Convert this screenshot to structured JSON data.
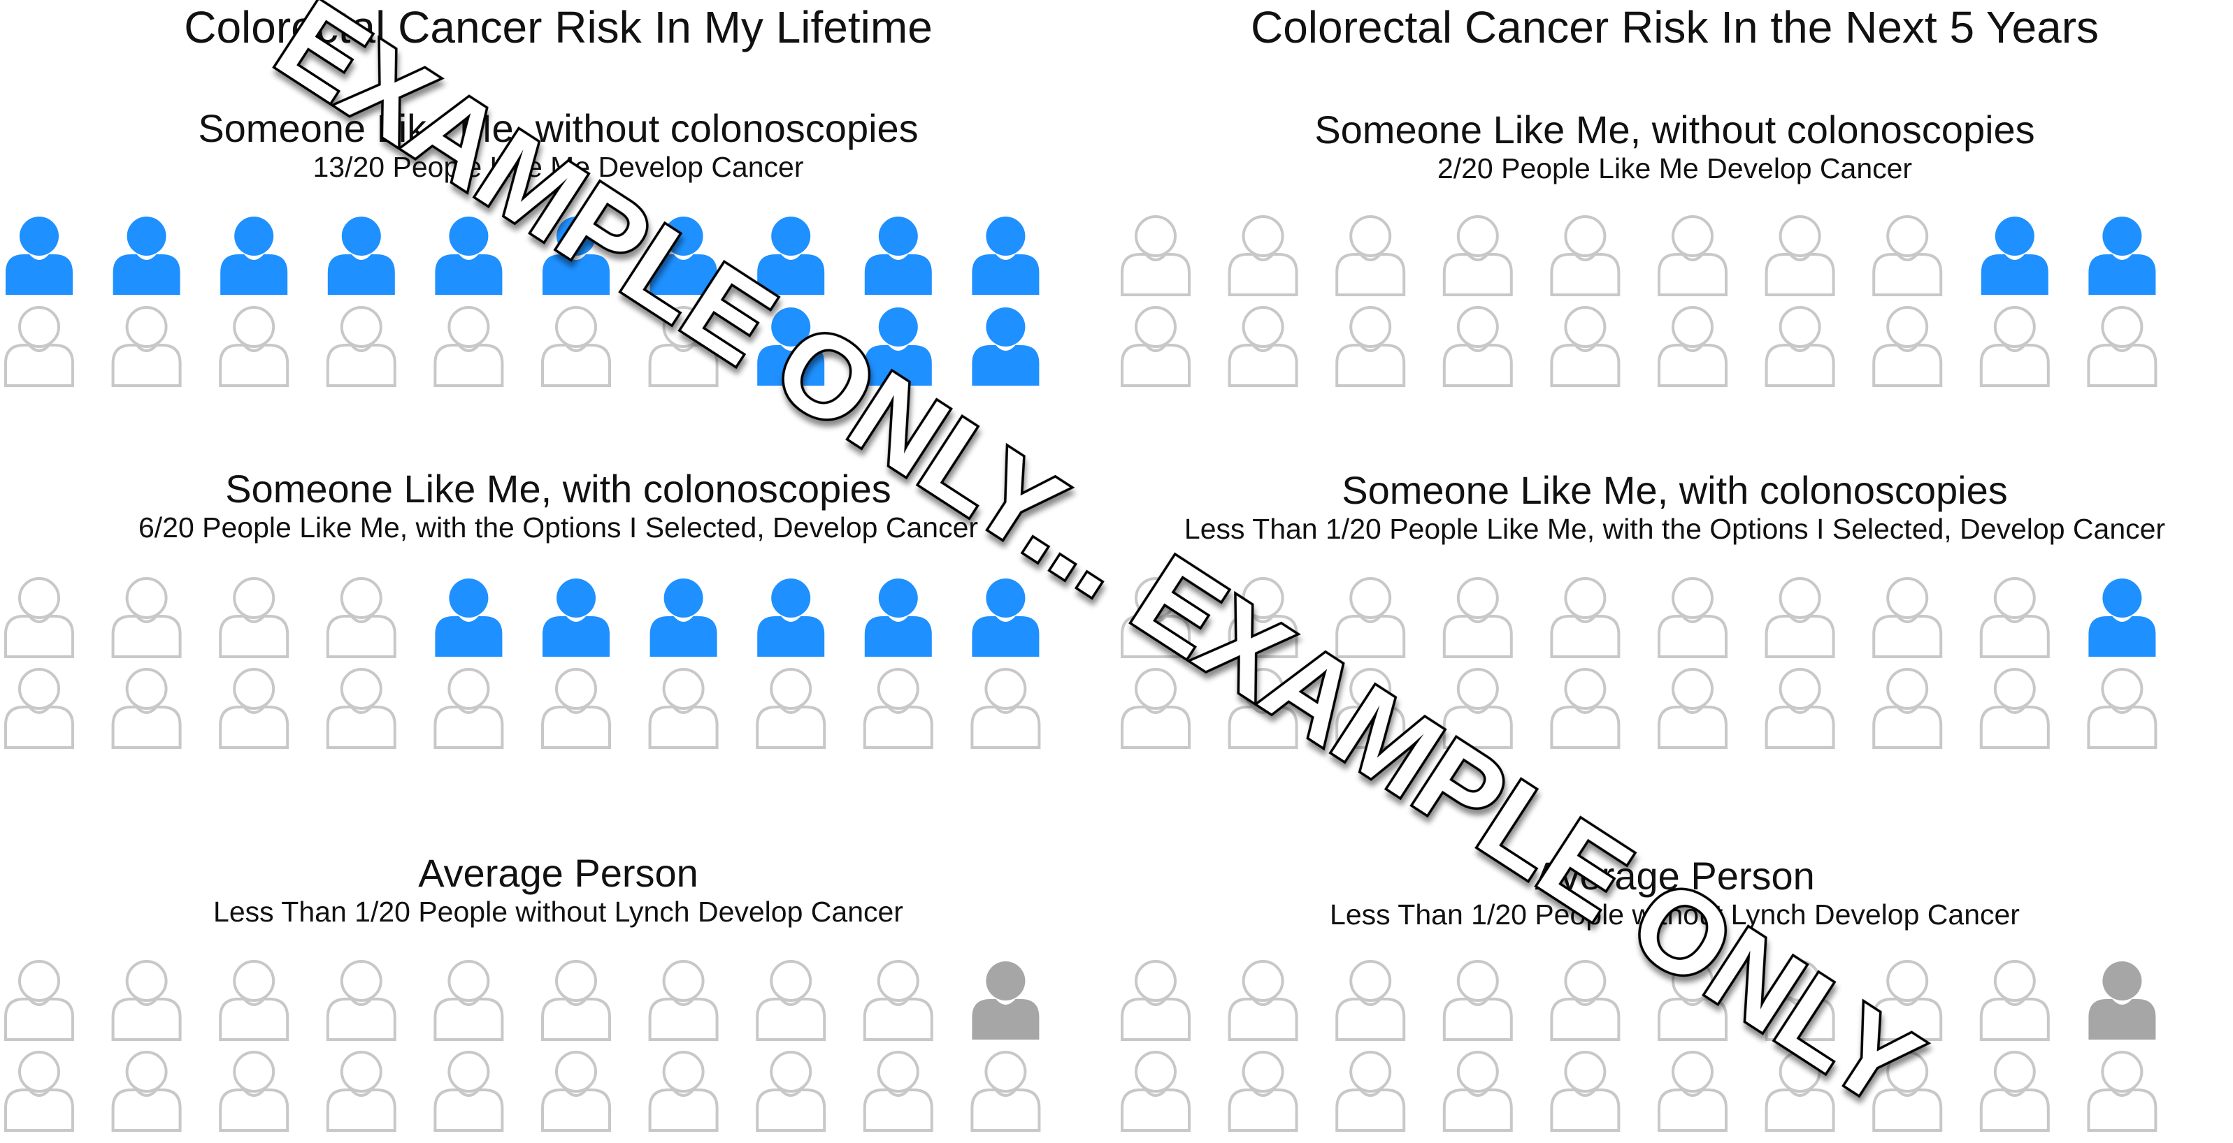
{
  "colors": {
    "affected": "#1e90ff",
    "average_affected": "#a6a6a6",
    "unaffected_stroke": "#c8c8c8"
  },
  "icon": "person-icon",
  "chart_data": [
    {
      "type": "icon-array",
      "title": "Colorectal Cancer Risk In My Lifetime",
      "panels": [
        {
          "title": "Someone Like Me, without colonoscopies",
          "subtitle": "13/20 People Like Me Develop Cancer",
          "total": 20,
          "affected": 13,
          "color": "#1e90ff"
        },
        {
          "title": "Someone Like Me, with colonoscopies",
          "subtitle": "6/20 People Like Me, with the Options I Selected, Develop Cancer",
          "total": 20,
          "affected": 6,
          "color": "#1e90ff"
        },
        {
          "title": "Average Person",
          "subtitle": "Less Than 1/20 People without Lynch Develop Cancer",
          "total": 20,
          "affected": 1,
          "color": "#a6a6a6"
        }
      ]
    },
    {
      "type": "icon-array",
      "title": "Colorectal Cancer Risk In the Next 5 Years",
      "panels": [
        {
          "title": "Someone Like Me, without colonoscopies",
          "subtitle": "2/20 People Like Me Develop Cancer",
          "total": 20,
          "affected": 2,
          "color": "#1e90ff"
        },
        {
          "title": "Someone Like Me, with colonoscopies",
          "subtitle": "Less Than 1/20 People Like Me, with the Options I Selected, Develop Cancer",
          "total": 20,
          "affected": 1,
          "color": "#1e90ff"
        },
        {
          "title": "Average Person",
          "subtitle": "Less Than 1/20 People without Lynch Develop Cancer",
          "total": 20,
          "affected": 1,
          "color": "#a6a6a6"
        }
      ]
    }
  ],
  "watermark": {
    "text": "EXAMPLE ONLY... EXAMPLE ONLY"
  }
}
